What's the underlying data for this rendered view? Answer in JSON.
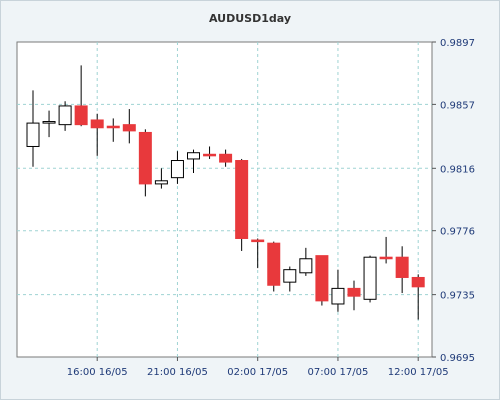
{
  "chart_data": {
    "type": "candlestick",
    "title": "AUDUSD1day",
    "xlabel": "",
    "ylabel": "",
    "ylim": [
      0.9695,
      0.9897
    ],
    "y_ticks": [
      "0.9897",
      "0.9857",
      "0.9816",
      "0.9776",
      "0.9735",
      "0.9695"
    ],
    "x_ticks": [
      {
        "label": "16:00 16/05",
        "index": 5
      },
      {
        "label": "21:00 16/05",
        "index": 10
      },
      {
        "label": "02:00 17/05",
        "index": 15
      },
      {
        "label": "07:00 17/05",
        "index": 20
      },
      {
        "label": "12:00 17/05",
        "index": 25
      }
    ],
    "grid": true,
    "colors": {
      "up": "#ffffff",
      "down": "#e8393c",
      "wick": "#000000",
      "grid": "#9fd3d3"
    },
    "candles": [
      {
        "o": 0.983,
        "h": 0.9866,
        "l": 0.9817,
        "c": 0.9845
      },
      {
        "o": 0.9845,
        "h": 0.9853,
        "l": 0.9836,
        "c": 0.9846
      },
      {
        "o": 0.9844,
        "h": 0.9859,
        "l": 0.984,
        "c": 0.9856
      },
      {
        "o": 0.9856,
        "h": 0.9882,
        "l": 0.9843,
        "c": 0.9844
      },
      {
        "o": 0.9847,
        "h": 0.9851,
        "l": 0.9824,
        "c": 0.9842
      },
      {
        "o": 0.9843,
        "h": 0.9848,
        "l": 0.9833,
        "c": 0.9842
      },
      {
        "o": 0.9844,
        "h": 0.9854,
        "l": 0.9832,
        "c": 0.984
      },
      {
        "o": 0.9839,
        "h": 0.9841,
        "l": 0.9798,
        "c": 0.9806
      },
      {
        "o": 0.9806,
        "h": 0.9816,
        "l": 0.9803,
        "c": 0.9808
      },
      {
        "o": 0.981,
        "h": 0.9827,
        "l": 0.9806,
        "c": 0.9821
      },
      {
        "o": 0.9822,
        "h": 0.9828,
        "l": 0.9813,
        "c": 0.9826
      },
      {
        "o": 0.9825,
        "h": 0.983,
        "l": 0.9822,
        "c": 0.9824
      },
      {
        "o": 0.9825,
        "h": 0.9828,
        "l": 0.9817,
        "c": 0.982
      },
      {
        "o": 0.9821,
        "h": 0.9822,
        "l": 0.9763,
        "c": 0.9771
      },
      {
        "o": 0.977,
        "h": 0.9771,
        "l": 0.9752,
        "c": 0.9769
      },
      {
        "o": 0.9768,
        "h": 0.9769,
        "l": 0.9737,
        "c": 0.9741
      },
      {
        "o": 0.9743,
        "h": 0.9753,
        "l": 0.9737,
        "c": 0.9751
      },
      {
        "o": 0.9749,
        "h": 0.9765,
        "l": 0.9747,
        "c": 0.9758
      },
      {
        "o": 0.976,
        "h": 0.976,
        "l": 0.9728,
        "c": 0.9731
      },
      {
        "o": 0.9729,
        "h": 0.9751,
        "l": 0.9724,
        "c": 0.9739
      },
      {
        "o": 0.9739,
        "h": 0.9744,
        "l": 0.9725,
        "c": 0.9734
      },
      {
        "o": 0.9732,
        "h": 0.976,
        "l": 0.973,
        "c": 0.9759
      },
      {
        "o": 0.9759,
        "h": 0.9772,
        "l": 0.9755,
        "c": 0.9758
      },
      {
        "o": 0.9759,
        "h": 0.9766,
        "l": 0.9736,
        "c": 0.9746
      },
      {
        "o": 0.9746,
        "h": 0.9748,
        "l": 0.9719,
        "c": 0.974
      }
    ]
  }
}
